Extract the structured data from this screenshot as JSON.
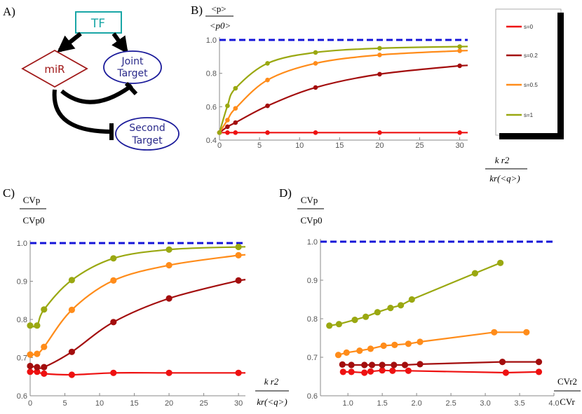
{
  "panels": {
    "a": {
      "letter": "A)"
    },
    "b": {
      "letter": "B)"
    },
    "c": {
      "letter": "C)"
    },
    "d": {
      "letter": "D)"
    }
  },
  "diagram": {
    "tf_label": "TF",
    "mir_label": "miR",
    "joint_label_1": "Joint",
    "joint_label_2": "Target",
    "second_label_1": "Second",
    "second_label_2": "Target",
    "colors": {
      "tf": "#1aa6a6",
      "mir": "#a01818",
      "target": "#1a1a9a",
      "arrow": "#000000"
    }
  },
  "axis_labels": {
    "b_y_num": "<p>",
    "b_y_den": "<p0>",
    "b_x_num": "k r2",
    "b_x_den": "kr(<q>)",
    "c_y_num": "CVp",
    "c_y_den": "CVp0",
    "c_x_num": "k r2",
    "c_x_den": "kr(<q>)",
    "d_y_num": "CVp",
    "d_y_den": "CVp0",
    "d_x_num": "CVr2",
    "d_x_den": "CVr"
  },
  "legend": {
    "entries": [
      "s=0",
      "s=0.2",
      "s=0.5",
      "s=1"
    ],
    "colors": [
      "#ee1111",
      "#a30d0d",
      "#ff8c1a",
      "#9aa811"
    ]
  },
  "chart_data": [
    {
      "id": "B",
      "type": "line",
      "xlim": [
        0,
        31
      ],
      "ylim": [
        0.4,
        1.0
      ],
      "xticks": [
        0,
        5,
        10,
        15,
        20,
        25,
        30
      ],
      "yticks": [
        0.4,
        0.6,
        0.8,
        1.0
      ],
      "ytick_labels": [
        "0.4",
        "0.6",
        "0.8",
        "1.0"
      ],
      "reference_line": 1.0,
      "series": [
        {
          "name": "s=0",
          "color": "#ee1111",
          "x": [
            0,
            1,
            2,
            6,
            12,
            20,
            30
          ],
          "y": [
            0.445,
            0.445,
            0.445,
            0.445,
            0.445,
            0.445,
            0.445
          ]
        },
        {
          "name": "s=0.2",
          "color": "#a30d0d",
          "x": [
            0,
            1,
            2,
            6,
            12,
            20,
            30
          ],
          "y": [
            0.445,
            0.48,
            0.505,
            0.605,
            0.715,
            0.795,
            0.845
          ]
        },
        {
          "name": "s=0.5",
          "color": "#ff8c1a",
          "x": [
            0,
            1,
            2,
            6,
            12,
            20,
            30
          ],
          "y": [
            0.445,
            0.52,
            0.59,
            0.76,
            0.86,
            0.91,
            0.935
          ]
        },
        {
          "name": "s=1",
          "color": "#9aa811",
          "x": [
            0,
            1,
            2,
            6,
            12,
            20,
            30
          ],
          "y": [
            0.445,
            0.605,
            0.71,
            0.86,
            0.925,
            0.95,
            0.96
          ]
        }
      ]
    },
    {
      "id": "C",
      "type": "line",
      "xlim": [
        0,
        31
      ],
      "ylim": [
        0.6,
        1.0
      ],
      "xticks": [
        0,
        5,
        10,
        15,
        20,
        25,
        30
      ],
      "yticks": [
        0.6,
        0.7,
        0.8,
        0.9,
        1.0
      ],
      "ytick_labels": [
        "0.6",
        "0.7",
        "0.8",
        "0.9",
        "1.0"
      ],
      "reference_line": 1.0,
      "series": [
        {
          "name": "s=0",
          "color": "#ee1111",
          "x": [
            0,
            1,
            2,
            6,
            12,
            20,
            30
          ],
          "y": [
            0.663,
            0.663,
            0.658,
            0.655,
            0.66,
            0.66,
            0.66
          ]
        },
        {
          "name": "s=0.2",
          "color": "#a30d0d",
          "x": [
            0,
            1,
            2,
            6,
            12,
            20,
            30
          ],
          "y": [
            0.678,
            0.675,
            0.675,
            0.715,
            0.793,
            0.855,
            0.902
          ]
        },
        {
          "name": "s=0.5",
          "color": "#ff8c1a",
          "x": [
            0,
            1,
            2,
            6,
            12,
            20,
            30
          ],
          "y": [
            0.708,
            0.71,
            0.728,
            0.825,
            0.902,
            0.942,
            0.968
          ]
        },
        {
          "name": "s=1",
          "color": "#9aa811",
          "x": [
            0,
            1,
            2,
            6,
            12,
            20,
            30
          ],
          "y": [
            0.784,
            0.784,
            0.826,
            0.903,
            0.96,
            0.983,
            0.99
          ]
        }
      ]
    },
    {
      "id": "D",
      "type": "line",
      "xlim": [
        0.6,
        4.0
      ],
      "ylim": [
        0.6,
        1.0
      ],
      "xticks": [
        1.0,
        1.5,
        2.0,
        2.5,
        3.0,
        3.5,
        4.0
      ],
      "xtick_labels": [
        "1.0",
        "1.5",
        "2.0",
        "2.5",
        "3.0",
        "3.5",
        "4.0"
      ],
      "yticks": [
        0.6,
        0.7,
        0.8,
        0.9,
        1.0
      ],
      "ytick_labels": [
        "0.6",
        "0.7",
        "0.8",
        "0.9",
        "1.0"
      ],
      "reference_line": 1.0,
      "series": [
        {
          "name": "s=0",
          "color": "#ee1111",
          "x": [
            0.93,
            1.05,
            1.24,
            1.33,
            1.5,
            1.65,
            1.88,
            3.3,
            3.78
          ],
          "y": [
            0.662,
            0.662,
            0.66,
            0.663,
            0.666,
            0.665,
            0.665,
            0.66,
            0.662
          ]
        },
        {
          "name": "s=0.2",
          "color": "#a30d0d",
          "x": [
            0.92,
            1.05,
            1.24,
            1.35,
            1.5,
            1.67,
            1.83,
            2.05,
            3.25,
            3.78
          ],
          "y": [
            0.681,
            0.68,
            0.68,
            0.68,
            0.68,
            0.68,
            0.68,
            0.682,
            0.688,
            0.688
          ]
        },
        {
          "name": "s=0.5",
          "color": "#ff8c1a",
          "x": [
            0.86,
            0.98,
            1.17,
            1.33,
            1.52,
            1.68,
            1.88,
            2.05,
            3.13,
            3.6
          ],
          "y": [
            0.706,
            0.712,
            0.717,
            0.722,
            0.73,
            0.732,
            0.735,
            0.74,
            0.765,
            0.765
          ]
        },
        {
          "name": "s=1",
          "color": "#9aa811",
          "x": [
            0.73,
            0.87,
            1.1,
            1.26,
            1.43,
            1.62,
            1.77,
            1.93,
            2.85,
            3.22
          ],
          "y": [
            0.782,
            0.786,
            0.797,
            0.805,
            0.817,
            0.828,
            0.835,
            0.85,
            0.918,
            0.945
          ]
        }
      ]
    }
  ]
}
